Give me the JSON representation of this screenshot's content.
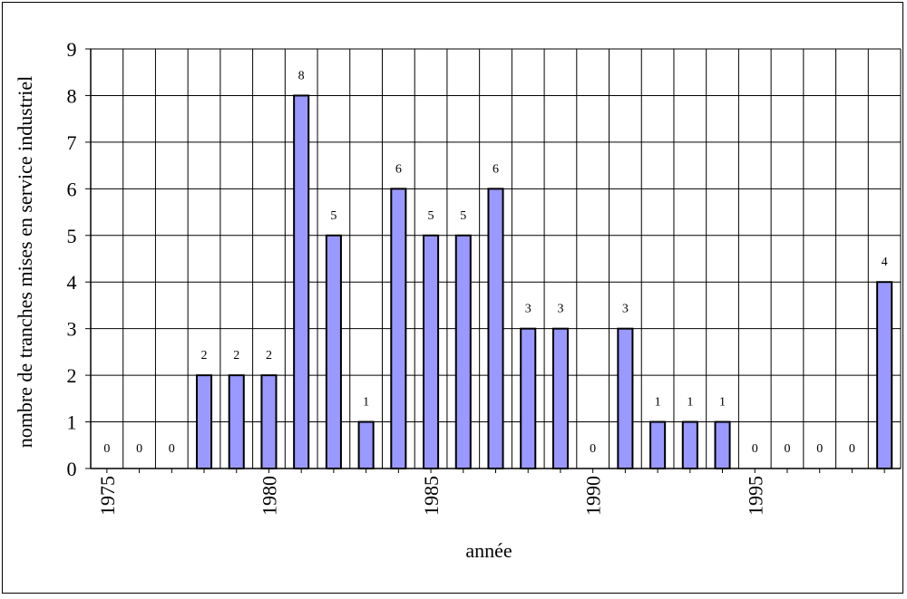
{
  "chart_data": {
    "type": "bar",
    "title": "",
    "xlabel": "année",
    "ylabel": "nombre de tranches mises en service industriel",
    "ylim": [
      0,
      9
    ],
    "yticks": [
      "0",
      "1",
      "2",
      "3",
      "4",
      "5",
      "6",
      "7",
      "8",
      "9"
    ],
    "grid": true,
    "legend": "none",
    "categories": [
      1975,
      1976,
      1977,
      1978,
      1979,
      1980,
      1981,
      1982,
      1983,
      1984,
      1985,
      1986,
      1987,
      1988,
      1989,
      1990,
      1991,
      1992,
      1993,
      1994,
      1995,
      1996,
      1997,
      1998,
      1999
    ],
    "values": [
      0,
      0,
      0,
      2,
      2,
      2,
      8,
      5,
      1,
      6,
      5,
      5,
      6,
      3,
      3,
      0,
      3,
      1,
      1,
      1,
      0,
      0,
      0,
      0,
      4
    ],
    "x_tick_labels": [
      {
        "year": 1975,
        "label": "1975"
      },
      {
        "year": 1980,
        "label": "1980"
      },
      {
        "year": 1985,
        "label": "1985"
      },
      {
        "year": 1990,
        "label": "1990"
      },
      {
        "year": 1995,
        "label": "1995"
      }
    ],
    "bar_color": "#9999ff",
    "bar_edge_color": "#000000"
  }
}
